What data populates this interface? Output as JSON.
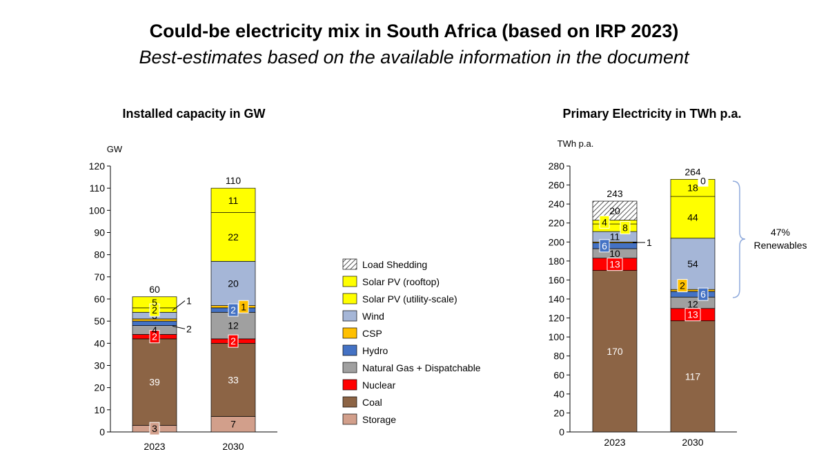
{
  "title": "Could-be electricity mix in South Africa (based on IRP 2023)",
  "subtitle": "Best-estimates based on the available information in the document",
  "colors": {
    "Storage": "#d29f8b",
    "Coal": "#8c6445",
    "Nuclear": "#ff0000",
    "Natural Gas + Dispatchable": "#a0a0a0",
    "Hydro": "#4472c4",
    "CSP": "#ffc000",
    "Wind": "#a5b6d7",
    "Solar PV (utility-scale)": "#ffff00",
    "Solar PV (rooftop)": "#ffff00",
    "Load Shedding": "#ffffff"
  },
  "legend": [
    "Load Shedding",
    "Solar PV (rooftop)",
    "Solar PV (utility-scale)",
    "Wind",
    "CSP",
    "Hydro",
    "Natural Gas + Dispatchable",
    "Nuclear",
    "Coal",
    "Storage"
  ],
  "annotation": {
    "line1": "47%",
    "line2": "Renewables"
  },
  "chart_data": [
    {
      "type": "bar",
      "stacked": true,
      "title": "Installed capacity in GW",
      "ylabel": "GW",
      "ylim": [
        0,
        120
      ],
      "ytick_step": 10,
      "categories": [
        "2023",
        "2030"
      ],
      "totals": [
        "60",
        "110"
      ],
      "series": [
        {
          "name": "Storage",
          "values": [
            3,
            7
          ],
          "labels": [
            "3",
            "7"
          ]
        },
        {
          "name": "Coal",
          "values": [
            39,
            33
          ],
          "labels": [
            "39",
            "33"
          ]
        },
        {
          "name": "Nuclear",
          "values": [
            2,
            2
          ],
          "labels": [
            "2",
            "2"
          ]
        },
        {
          "name": "Natural Gas + Dispatchable",
          "values": [
            4,
            12
          ],
          "labels": [
            "4",
            "12"
          ]
        },
        {
          "name": "Hydro",
          "values": [
            2,
            2
          ],
          "labels": [
            "2",
            "2"
          ]
        },
        {
          "name": "CSP",
          "values": [
            1,
            1
          ],
          "labels": [
            "1",
            "1"
          ]
        },
        {
          "name": "Wind",
          "values": [
            3,
            20
          ],
          "labels": [
            "3",
            "20"
          ]
        },
        {
          "name": "Solar PV (utility-scale)",
          "values": [
            2,
            22
          ],
          "labels": [
            "2",
            "22"
          ]
        },
        {
          "name": "Solar PV (rooftop)",
          "values": [
            5,
            11
          ],
          "labels": [
            "5",
            "11"
          ]
        },
        {
          "name": "Load Shedding",
          "values": [
            0,
            0
          ],
          "labels": [
            "",
            ""
          ]
        }
      ]
    },
    {
      "type": "bar",
      "stacked": true,
      "title": "Primary Electricity in TWh p.a.",
      "ylabel": "TWh p.a.",
      "ylim": [
        0,
        280
      ],
      "ytick_step": 20,
      "categories": [
        "2023",
        "2030"
      ],
      "totals": [
        "243",
        "264"
      ],
      "series": [
        {
          "name": "Storage",
          "values": [
            0,
            0
          ],
          "labels": [
            "",
            ""
          ]
        },
        {
          "name": "Coal",
          "values": [
            170,
            117
          ],
          "labels": [
            "170",
            "117"
          ]
        },
        {
          "name": "Nuclear",
          "values": [
            13,
            13
          ],
          "labels": [
            "13",
            "13"
          ]
        },
        {
          "name": "Natural Gas + Dispatchable",
          "values": [
            10,
            12
          ],
          "labels": [
            "10",
            "12"
          ]
        },
        {
          "name": "Hydro",
          "values": [
            6,
            6
          ],
          "labels": [
            "6",
            "6"
          ]
        },
        {
          "name": "CSP",
          "values": [
            1,
            2
          ],
          "labels": [
            "1",
            "2"
          ]
        },
        {
          "name": "Wind",
          "values": [
            11,
            54
          ],
          "labels": [
            "11",
            "54"
          ]
        },
        {
          "name": "Solar PV (utility-scale)",
          "values": [
            8,
            44
          ],
          "labels": [
            "8",
            "44"
          ]
        },
        {
          "name": "Solar PV (rooftop)",
          "values": [
            4,
            18
          ],
          "labels": [
            "4",
            "18"
          ]
        },
        {
          "name": "Load Shedding",
          "values": [
            20,
            0
          ],
          "labels": [
            "20",
            "0"
          ]
        }
      ]
    }
  ]
}
